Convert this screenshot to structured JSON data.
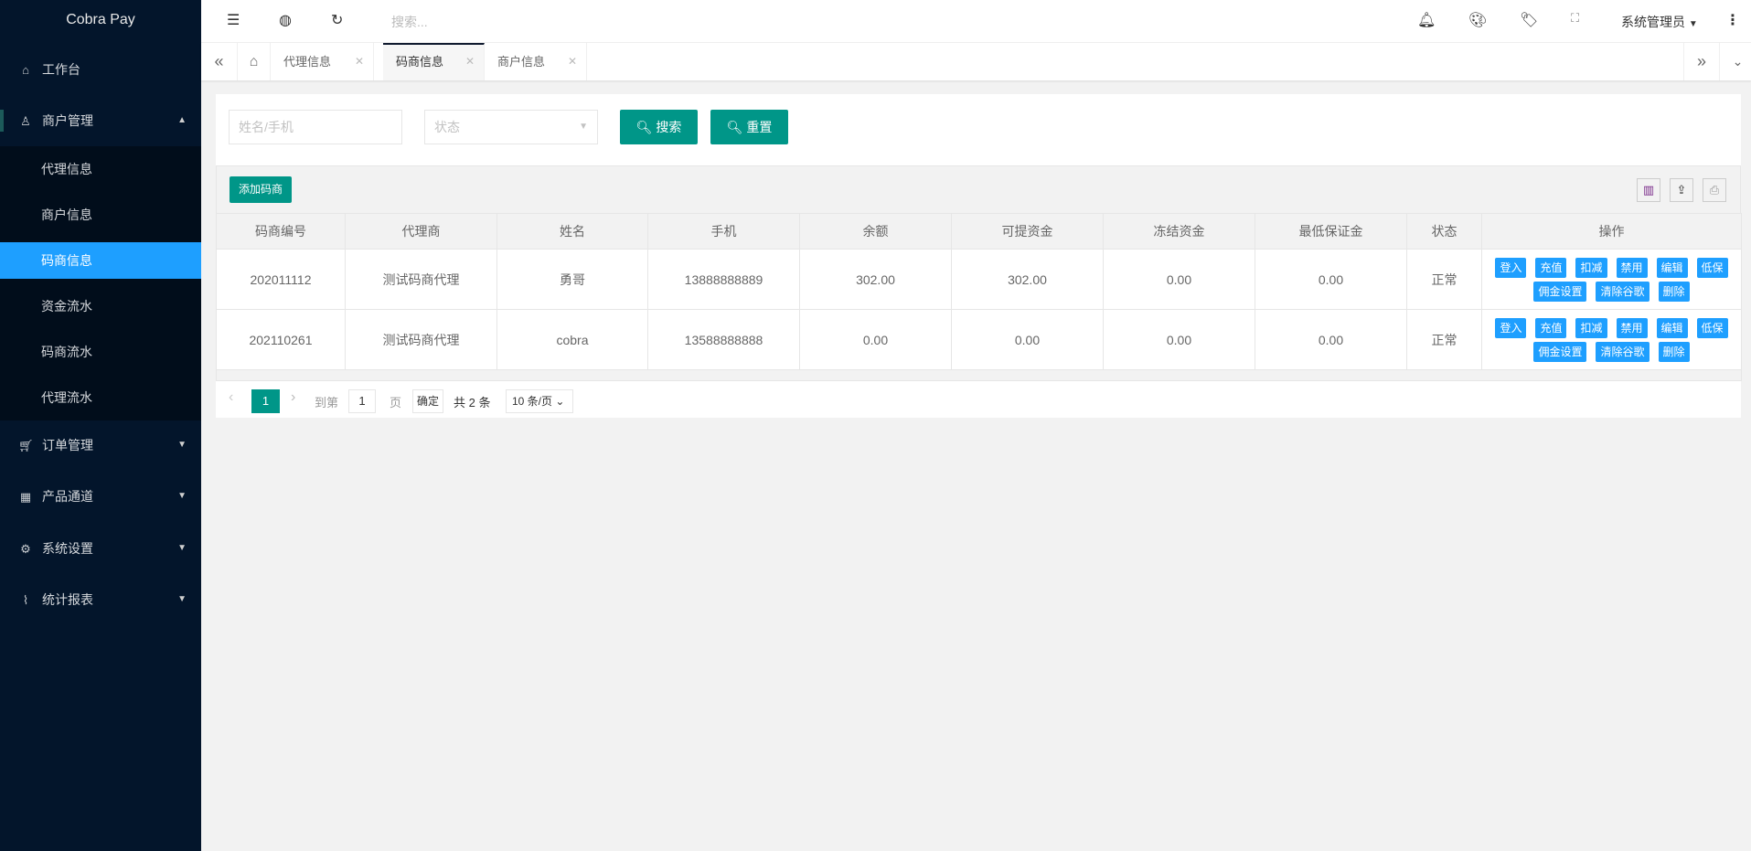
{
  "app": {
    "title": "Cobra Pay"
  },
  "sidebar": {
    "items": [
      {
        "label": "工作台",
        "icon": "home-icon"
      },
      {
        "label": "商户管理",
        "icon": "user-icon",
        "expanded": true,
        "children": [
          "代理信息",
          "商户信息",
          "码商信息",
          "资金流水",
          "码商流水",
          "代理流水"
        ],
        "active": "码商信息"
      },
      {
        "label": "订单管理",
        "icon": "cart-icon"
      },
      {
        "label": "产品通道",
        "icon": "apps-icon"
      },
      {
        "label": "系统设置",
        "icon": "gear-icon"
      },
      {
        "label": "统计报表",
        "icon": "pulse-icon"
      }
    ]
  },
  "header": {
    "search_placeholder": "搜索...",
    "user": "系统管理员"
  },
  "tabs": [
    {
      "label": "代理信息"
    },
    {
      "label": "码商信息",
      "active": true
    },
    {
      "label": "商户信息"
    }
  ],
  "filters": {
    "name_placeholder": "姓名/手机",
    "status_placeholder": "状态",
    "search_label": "搜索",
    "reset_label": "重置"
  },
  "toolbar": {
    "add_label": "添加码商"
  },
  "table": {
    "columns": [
      "码商编号",
      "代理商",
      "姓名",
      "手机",
      "余额",
      "可提资金",
      "冻结资金",
      "最低保证金",
      "状态",
      "操作"
    ],
    "rows": [
      [
        "202011112",
        "测试码商代理",
        "勇哥",
        "13888888889",
        "302.00",
        "302.00",
        "0.00",
        "0.00",
        "正常"
      ],
      [
        "202110261",
        "测试码商代理",
        "cobra",
        "13588888888",
        "0.00",
        "0.00",
        "0.00",
        "0.00",
        "正常"
      ]
    ],
    "actions": [
      "登入",
      "充值",
      "扣减",
      "禁用",
      "编辑",
      "低保",
      "佣金设置",
      "清除谷歌",
      "删除"
    ]
  },
  "pager": {
    "current": "1",
    "goto_prefix": "到第",
    "goto_value": "1",
    "goto_suffix": "页",
    "confirm": "确定",
    "total": "共 2 条",
    "page_size": "10 条/页"
  },
  "colors": {
    "sidebar": "#03152b",
    "active": "#1e9fff",
    "primary": "#009688"
  }
}
